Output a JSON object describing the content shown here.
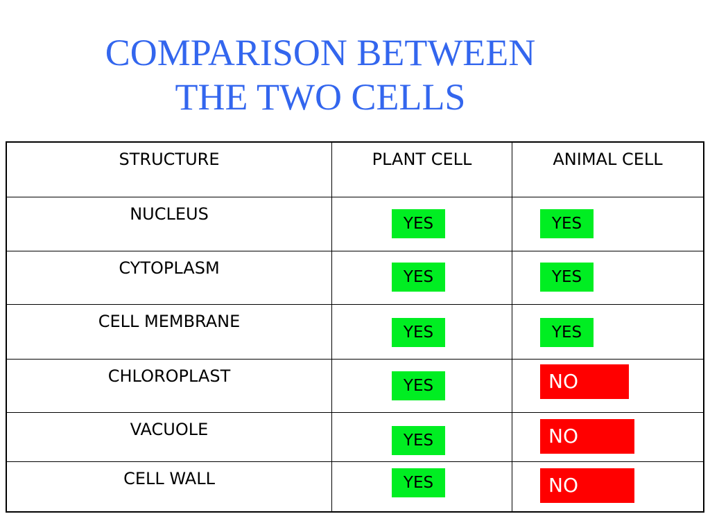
{
  "title": {
    "line1": "COMPARISON BETWEEN",
    "line2": "THE TWO CELLS"
  },
  "table": {
    "headers": [
      "STRUCTURE",
      "PLANT CELL",
      "ANIMAL CELL"
    ],
    "rows": [
      {
        "structure": "NUCLEUS",
        "plant": "YES",
        "animal": "YES"
      },
      {
        "structure": "CYTOPLASM",
        "plant": "YES",
        "animal": "YES"
      },
      {
        "structure": "CELL MEMBRANE",
        "plant": "YES",
        "animal": "YES"
      },
      {
        "structure": "CHLOROPLAST",
        "plant": "YES",
        "animal": "NO"
      },
      {
        "structure": "VACUOLE",
        "plant": "YES",
        "animal": "NO"
      },
      {
        "structure": "CELL WALL",
        "plant": "YES",
        "animal": "NO"
      }
    ]
  },
  "colors": {
    "title": "#3366ee",
    "yes": "#00ee22",
    "no": "#ff0000"
  }
}
